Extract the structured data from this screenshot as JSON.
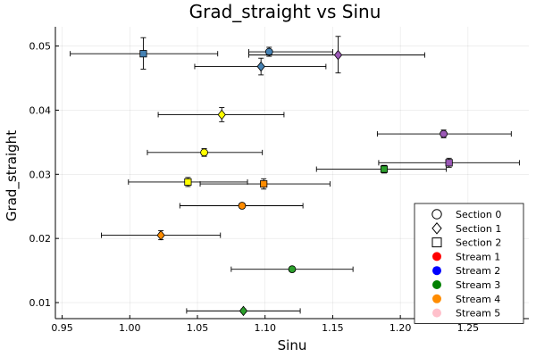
{
  "chart_data": {
    "type": "scatter",
    "title": "Grad_straight vs Sinu",
    "xlabel": "Sinu",
    "ylabel": "Grad_straight",
    "xlim": [
      0.945,
      1.295
    ],
    "ylim": [
      0.0075,
      0.053
    ],
    "xticks": [
      0.95,
      1.0,
      1.05,
      1.1,
      1.15,
      1.2,
      1.25
    ],
    "xtick_labels": [
      "0.95",
      "1.00",
      "1.05",
      "1.10",
      "1.15",
      "1.20",
      "1.25"
    ],
    "yticks": [
      0.01,
      0.02,
      0.03,
      0.04,
      0.05
    ],
    "ytick_labels": [
      "0.01",
      "0.02",
      "0.03",
      "0.04",
      "0.05"
    ],
    "grid": true,
    "legend_position": "bottom-right",
    "legend": [
      {
        "label": "Section 0",
        "kind": "marker",
        "marker": "circle"
      },
      {
        "label": "Section 1",
        "kind": "marker",
        "marker": "diamond"
      },
      {
        "label": "Section 2",
        "kind": "marker",
        "marker": "square"
      },
      {
        "label": "Stream 1",
        "kind": "color",
        "color": "#ff0000"
      },
      {
        "label": "Stream 2",
        "kind": "color",
        "color": "#0000ff"
      },
      {
        "label": "Stream 3",
        "kind": "color",
        "color": "#008000"
      },
      {
        "label": "Stream 4",
        "kind": "color",
        "color": "#ff8c00"
      },
      {
        "label": "Stream 5",
        "kind": "color",
        "color": "#ffc0cb"
      }
    ],
    "points": [
      {
        "x": 1.01,
        "y": 0.0488,
        "xerr": [
          0.054,
          0.055
        ],
        "yerr": [
          0.0024,
          0.0025
        ],
        "marker": "square",
        "color": "#4682b4"
      },
      {
        "x": 1.103,
        "y": 0.0491,
        "xerr": [
          0.015,
          0.047
        ],
        "yerr": [
          0.0007,
          0.0007
        ],
        "marker": "circle",
        "color": "#4682b4"
      },
      {
        "x": 1.097,
        "y": 0.0468,
        "xerr": [
          0.049,
          0.048
        ],
        "yerr": [
          0.0013,
          0.0013
        ],
        "marker": "diamond",
        "color": "#4682b4"
      },
      {
        "x": 1.154,
        "y": 0.0486,
        "xerr": [
          0.066,
          0.064
        ],
        "yerr": [
          0.0028,
          0.0029
        ],
        "marker": "diamond",
        "color": "#9b59b6"
      },
      {
        "x": 1.068,
        "y": 0.0393,
        "xerr": [
          0.047,
          0.046
        ],
        "yerr": [
          0.0011,
          0.0011
        ],
        "marker": "diamond",
        "color": "#ffff00"
      },
      {
        "x": 1.232,
        "y": 0.0363,
        "xerr": [
          0.049,
          0.05
        ],
        "yerr": [
          0.0006,
          0.0006
        ],
        "marker": "circle",
        "color": "#9b59b6"
      },
      {
        "x": 1.055,
        "y": 0.0334,
        "xerr": [
          0.042,
          0.043
        ],
        "yerr": [
          0.0006,
          0.0006
        ],
        "marker": "circle",
        "color": "#ffff00"
      },
      {
        "x": 1.236,
        "y": 0.0318,
        "xerr": [
          0.052,
          0.052
        ],
        "yerr": [
          0.0007,
          0.0007
        ],
        "marker": "square",
        "color": "#9b59b6"
      },
      {
        "x": 1.188,
        "y": 0.0308,
        "xerr": [
          0.05,
          0.046
        ],
        "yerr": [
          0.0006,
          0.0006
        ],
        "marker": "square",
        "color": "#2ca02c"
      },
      {
        "x": 1.043,
        "y": 0.0288,
        "xerr": [
          0.044,
          0.044
        ],
        "yerr": [
          0.0007,
          0.0007
        ],
        "marker": "square",
        "color": "#ffff00"
      },
      {
        "x": 1.099,
        "y": 0.0285,
        "xerr": [
          0.047,
          0.049
        ],
        "yerr": [
          0.0008,
          0.0008
        ],
        "marker": "square",
        "color": "#ff8c00"
      },
      {
        "x": 1.083,
        "y": 0.0251,
        "xerr": [
          0.046,
          0.045
        ],
        "yerr": [
          0.0004,
          0.0004
        ],
        "marker": "circle",
        "color": "#ff8c00"
      },
      {
        "x": 1.023,
        "y": 0.0205,
        "xerr": [
          0.044,
          0.044
        ],
        "yerr": [
          0.0007,
          0.0007
        ],
        "marker": "diamond",
        "color": "#ff8c00"
      },
      {
        "x": 1.12,
        "y": 0.0152,
        "xerr": [
          0.045,
          0.045
        ],
        "yerr": [
          0.0004,
          0.0004
        ],
        "marker": "circle",
        "color": "#2ca02c"
      },
      {
        "x": 1.084,
        "y": 0.0087,
        "xerr": [
          0.042,
          0.042
        ],
        "yerr": [
          0.0003,
          0.0003
        ],
        "marker": "diamond",
        "color": "#2ca02c"
      }
    ]
  }
}
